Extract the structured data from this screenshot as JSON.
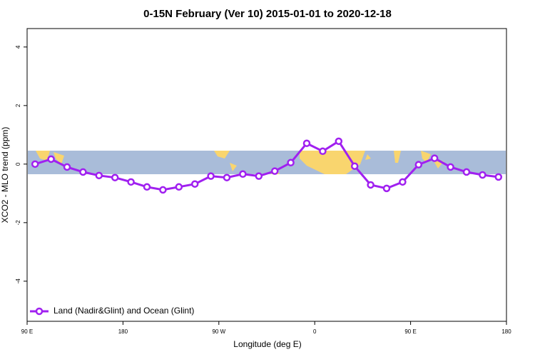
{
  "chart_data": {
    "type": "line",
    "title": "0-15N February (Ver 10)   2015-01-01 to 2020-12-18",
    "x_label": "Longitude (deg E)",
    "y_label": "XCO2 - MLO trend (ppm)",
    "x": [
      97.5,
      112.5,
      127.5,
      142.5,
      157.5,
      172.5,
      187.5,
      202.5,
      217.5,
      232.5,
      247.5,
      262.5,
      277.5,
      292.5,
      307.5,
      322.5,
      337.5,
      352.5,
      367.5,
      382.5,
      397.5,
      412.5,
      427.5,
      442.5,
      457.5,
      472.5,
      487.5,
      502.5,
      517.5,
      532.5
    ],
    "series": [
      {
        "name": "Land (Nadir&Glint) and Ocean (Glint)",
        "color": "#a020f0",
        "values": [
          0.0,
          0.17,
          -0.1,
          -0.27,
          -0.39,
          -0.46,
          -0.61,
          -0.78,
          -0.88,
          -0.78,
          -0.68,
          -0.41,
          -0.46,
          -0.34,
          -0.41,
          -0.24,
          0.05,
          0.71,
          0.44,
          0.78,
          -0.07,
          -0.71,
          -0.83,
          -0.61,
          -0.02,
          0.2,
          -0.1,
          -0.27,
          -0.37,
          -0.44
        ]
      }
    ],
    "xlim": [
      90,
      540
    ],
    "xticks": [
      {
        "value": 90,
        "label": "90 E"
      },
      {
        "value": 180,
        "label": "180"
      },
      {
        "value": 270,
        "label": "90 W"
      },
      {
        "value": 360,
        "label": "0"
      },
      {
        "value": 450,
        "label": "90 E"
      },
      {
        "value": 540,
        "label": "180"
      }
    ],
    "ylim": [
      -5.37,
      4.63
    ],
    "yticks": [
      -4,
      -2,
      0,
      2,
      4
    ],
    "legend": "bottomleft"
  }
}
